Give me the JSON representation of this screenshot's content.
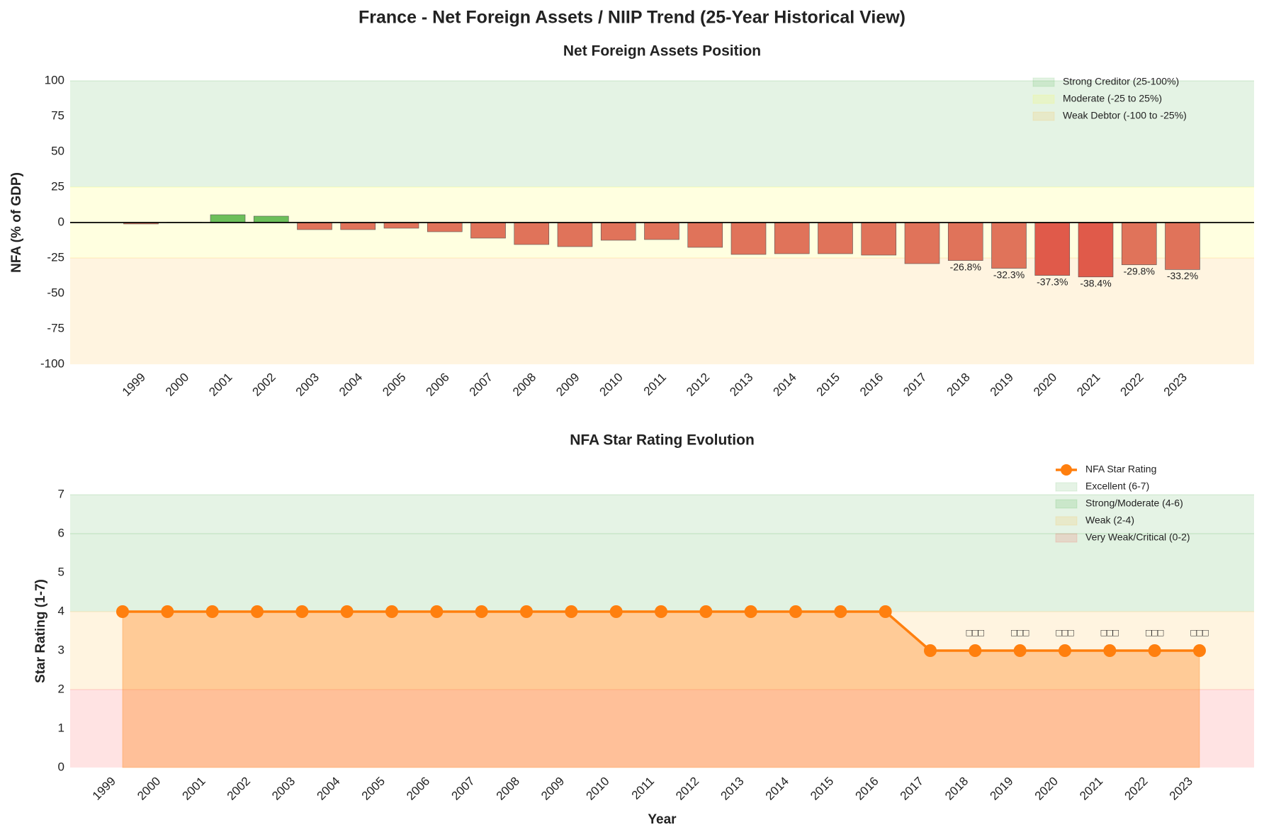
{
  "title": "France - Net Foreign Assets / NIIP Trend (25-Year Historical View)",
  "chart_data": [
    {
      "type": "bar",
      "title": "Net Foreign Assets Position",
      "ylabel": "NFA (% of GDP)",
      "categories": [
        "1999",
        "2000",
        "2001",
        "2002",
        "2003",
        "2004",
        "2005",
        "2006",
        "2007",
        "2008",
        "2009",
        "2010",
        "2011",
        "2012",
        "2013",
        "2014",
        "2015",
        "2016",
        "2017",
        "2018",
        "2019",
        "2020",
        "2021",
        "2022",
        "2023"
      ],
      "values": [
        -1.0,
        0.2,
        5.5,
        4.5,
        -5.0,
        -5.0,
        -4.0,
        -6.5,
        -11.0,
        -15.5,
        -17.0,
        -12.5,
        -12.0,
        -17.5,
        -22.5,
        -22.0,
        -22.0,
        -23.0,
        -29.0,
        -26.8,
        -32.3,
        -37.3,
        -38.4,
        -29.8,
        -33.2
      ],
      "value_labels": [
        null,
        null,
        null,
        null,
        null,
        null,
        null,
        null,
        null,
        null,
        null,
        null,
        null,
        null,
        null,
        null,
        null,
        null,
        null,
        "-26.8%",
        "-32.3%",
        "-37.3%",
        "-38.4%",
        "-29.8%",
        "-33.2%"
      ],
      "colors": [
        "#e0735a",
        "#e0735a",
        "#6cbf5a",
        "#6cbf5a",
        "#e0735a",
        "#e0735a",
        "#e0735a",
        "#e0735a",
        "#e0735a",
        "#e0735a",
        "#e0735a",
        "#e0735a",
        "#e0735a",
        "#e0735a",
        "#e0735a",
        "#e0735a",
        "#e0735a",
        "#e0735a",
        "#e0735a",
        "#e0735a",
        "#e0735a",
        "#e05a4a",
        "#e05a4a",
        "#e0735a",
        "#e0735a"
      ],
      "ylim": [
        -100,
        100
      ],
      "yticks": [
        -100,
        -75,
        -50,
        -25,
        0,
        25,
        50,
        75,
        100
      ],
      "bands": [
        {
          "name": "Strong Creditor (25-100%)",
          "range": [
            25,
            100
          ],
          "color": "rgba(44,160,44,0.13)"
        },
        {
          "name": "Moderate (-25 to 25%)",
          "range": [
            -25,
            25
          ],
          "color": "rgba(255,255,0,0.12)"
        },
        {
          "name": "Weak Debtor (-100 to -25%)",
          "range": [
            -100,
            -25
          ],
          "color": "rgba(255,165,0,0.12)"
        }
      ],
      "legend": "upper right"
    },
    {
      "type": "line",
      "title": "NFA Star Rating Evolution",
      "xlabel": "Year",
      "ylabel": "Star Rating (1-7)",
      "categories": [
        "1999",
        "2000",
        "2001",
        "2002",
        "2003",
        "2004",
        "2005",
        "2006",
        "2007",
        "2008",
        "2009",
        "2010",
        "2011",
        "2012",
        "2013",
        "2014",
        "2015",
        "2016",
        "2017",
        "2018",
        "2019",
        "2020",
        "2021",
        "2022",
        "2023"
      ],
      "series": [
        {
          "name": "NFA Star Rating",
          "color": "#ff7f0e",
          "values": [
            4,
            4,
            4,
            4,
            4,
            4,
            4,
            4,
            4,
            4,
            4,
            4,
            4,
            4,
            4,
            4,
            4,
            4,
            3,
            3,
            3,
            3,
            3,
            3,
            3
          ]
        }
      ],
      "point_labels": [
        null,
        null,
        null,
        null,
        null,
        null,
        null,
        null,
        null,
        null,
        null,
        null,
        null,
        null,
        null,
        null,
        null,
        null,
        null,
        "□□□",
        "□□□",
        "□□□",
        "□□□",
        "□□□",
        "□□□"
      ],
      "fill_area": true,
      "ylim": [
        0,
        7
      ],
      "yticks": [
        0,
        1,
        2,
        3,
        4,
        5,
        6,
        7
      ],
      "bands": [
        {
          "name": "Excellent (6-7)",
          "range": [
            6,
            7
          ],
          "color": "rgba(44,160,44,0.12)"
        },
        {
          "name": "Strong/Moderate (4-6)",
          "range": [
            4,
            6
          ],
          "color": "rgba(44,160,44,0.14)"
        },
        {
          "name": "Weak (2-4)",
          "range": [
            2,
            4
          ],
          "color": "rgba(255,165,0,0.12)"
        },
        {
          "name": "Very Weak/Critical (0-2)",
          "range": [
            0,
            2
          ],
          "color": "rgba(255,0,0,0.11)"
        }
      ],
      "legend": "upper right"
    }
  ]
}
